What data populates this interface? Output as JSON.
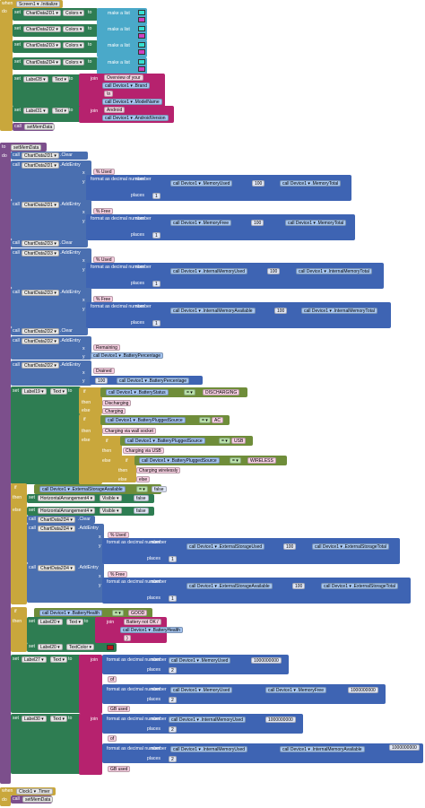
{
  "init": {
    "when": "when",
    "do": "do",
    "event": "Screen1 ▾ .Initialize",
    "set": "set",
    "to": "to",
    "colors": "Colors ▾",
    "make_list": "make a list",
    "charts": [
      "ChartData2D1 ▾",
      "ChartData2D2 ▾",
      "ChartData2D3 ▾",
      "ChartData2D4 ▾"
    ],
    "label28": "Label28 ▾",
    "label31": "Label31 ▾",
    "text": "Text ▾",
    "join": "join",
    "overview": "Overview of your",
    "device1": "Device1 ▾",
    "brand": ".Brand",
    "nl": "\\n",
    "modelname": ".ModelName",
    "android": "Android ",
    "androidversion": ".AndroidVersion",
    "call": "call",
    "setmem": "setMemData"
  },
  "proc": {
    "to": "to",
    "name": "setMemData",
    "do": "do",
    "call": "call",
    "clear": ".Clear",
    "addentry": ".AddEntry",
    "x": "x",
    "y": "y",
    "fmt": "format as decimal number",
    "number": "number",
    "places": "places",
    "one": "1",
    "hundred": "100",
    "memused": "% Used",
    "memfree": "% Free",
    "used_lbl": "% Used",
    "free_lbl": "% Free",
    "memoryused": ".MemoryUsed",
    "memorytotal": ".MemoryTotal",
    "memoryfree": ".MemoryFree",
    "intused": ".InternalMemoryUsed",
    "inttotal": ".InternalMemoryTotal",
    "intavail": ".InternalMemoryAvailable",
    "remaining": "Remaining",
    "batpct": ".BatteryPercentage",
    "drained": "Drained",
    "label19": "Label19 ▾",
    "label20": "Label20 ▾",
    "label21": "Label21 ▾",
    "label22": "Label22 ▾",
    "label27": "Label27 ▾",
    "label29": "Label29 ▾",
    "label30": "Label30 ▾",
    "if": "if",
    "then": "then",
    "else": "else",
    "batstatus": ".BatteryStatus",
    "eq": "= ▾",
    "discharging": "DISCHARGING",
    "discharging_t": "Discharging",
    "charging_t": "Charging",
    "plugged": ".BatteryPluggedSource",
    "ac": "AC",
    "wall": "Charging via wall socket",
    "usb": "USB",
    "viausb": "Charging via USB",
    "wireless": "WIRELESS",
    "charwireless": "Charging wirelessly",
    "else_t": "else",
    "extavail": ".ExternalStorageAvailable",
    "falsev": "false",
    "hz": "HorizontalArrangement4 ▾",
    "visible": "Visible ▾",
    "hz_false": "false",
    "chart2d1": "ChartData2D4 ▾",
    "chart2d2": "ChartData2D4 ▾",
    "extused": ".ExternalStorageUsed",
    "exttotal": ".ExternalStorageTotal",
    "extavl": ".ExternalStorageAvailable",
    "bathealth": ".BatteryHealth",
    "good": "GOOD",
    "batnotok": "Battery not OK / ",
    "bathealth2": ".BatteryHealth",
    "paren": ")",
    "textcolor": "TextColor ▾",
    "gb": "1000000000",
    "of": " of ",
    "gbused": " GB used",
    "two": "2",
    "divisor": "1000000000",
    "slash": "/",
    "times": "×"
  },
  "clock": {
    "when": "when",
    "do": "do",
    "event": "Clock1 ▾ .Timer",
    "call": "call",
    "setmem": "setMemData"
  },
  "colors": {
    "make1a": "#35e0d0",
    "make1b": "#d040c0",
    "make2a": "#35e0d0",
    "make2b": "#d040c0",
    "make3a": "#35e0d0",
    "make3b": "#d040c0",
    "make4a": "#35e0d0",
    "make4b": "#d040c0",
    "red": "#b81818"
  }
}
